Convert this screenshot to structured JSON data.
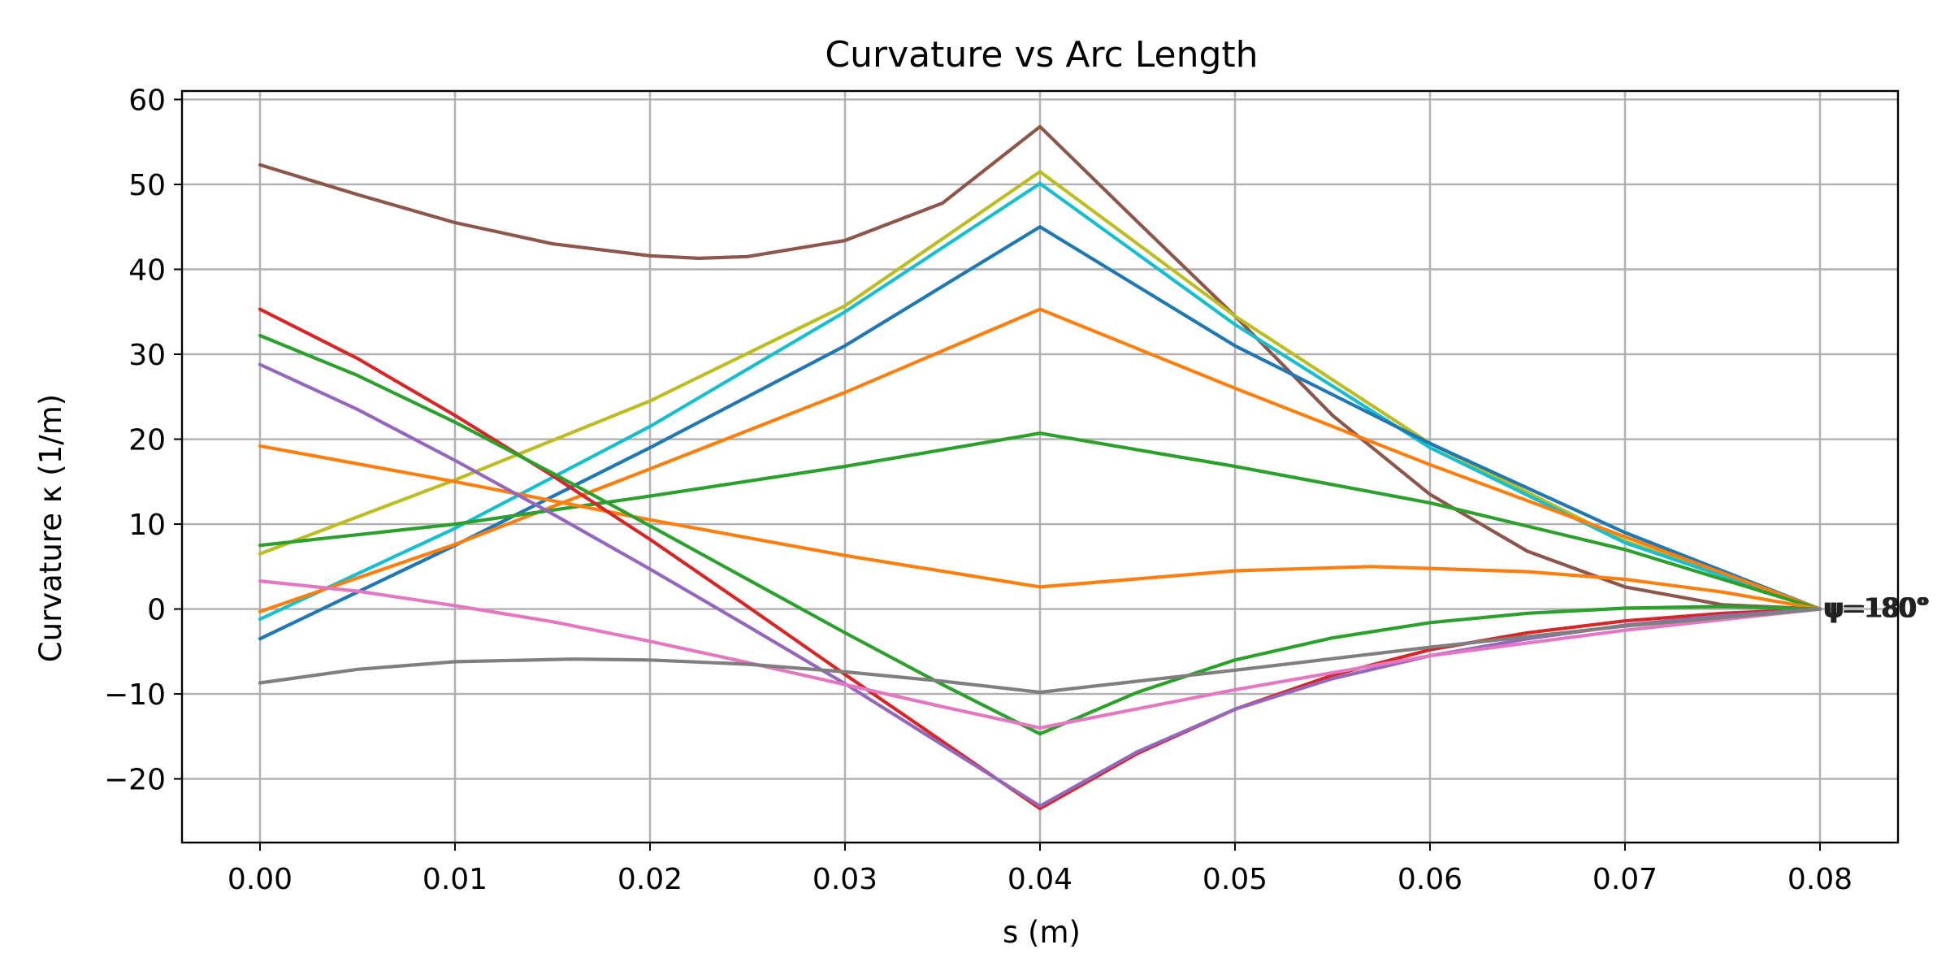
{
  "chart_data": {
    "type": "line",
    "title": "Curvature vs Arc Length",
    "xlabel": "s (m)",
    "ylabel": "Curvature κ (1/m)",
    "xlim": [
      -0.004,
      0.084
    ],
    "ylim": [
      -27.5,
      61
    ],
    "xticks": [
      0.0,
      0.01,
      0.02,
      0.03,
      0.04,
      0.05,
      0.06,
      0.07,
      0.08
    ],
    "xtick_labels": [
      "0.00",
      "0.01",
      "0.02",
      "0.03",
      "0.04",
      "0.05",
      "0.06",
      "0.07",
      "0.08"
    ],
    "yticks": [
      -20,
      -10,
      0,
      10,
      20,
      30,
      40,
      50,
      60
    ],
    "ytick_labels": [
      "−20",
      "−10",
      "0",
      "10",
      "20",
      "30",
      "40",
      "50",
      "60"
    ],
    "grid": true,
    "end_annotation": "ψ=180°",
    "series": [
      {
        "color": "#8c564b",
        "x": [
          0,
          0.005,
          0.01,
          0.015,
          0.02,
          0.0225,
          0.025,
          0.03,
          0.035,
          0.04,
          0.045,
          0.05,
          0.055,
          0.06,
          0.065,
          0.07,
          0.075,
          0.08
        ],
        "y": [
          52.3,
          48.8,
          45.5,
          43.0,
          41.6,
          41.3,
          41.5,
          43.4,
          47.8,
          56.8,
          45.6,
          34.5,
          22.8,
          13.5,
          6.8,
          2.6,
          0.5,
          0
        ]
      },
      {
        "color": "#bcbd22",
        "x": [
          0,
          0.01,
          0.02,
          0.03,
          0.04,
          0.05,
          0.06,
          0.07,
          0.08
        ],
        "y": [
          6.5,
          15.2,
          24.5,
          35.7,
          51.5,
          34.5,
          19.5,
          8.0,
          0
        ]
      },
      {
        "color": "#17becf",
        "x": [
          0,
          0.01,
          0.02,
          0.03,
          0.04,
          0.05,
          0.06,
          0.07,
          0.08
        ],
        "y": [
          -1.2,
          9.5,
          21.5,
          35.0,
          50.1,
          33.5,
          19.0,
          7.8,
          0
        ]
      },
      {
        "color": "#1f77b4",
        "x": [
          0,
          0.01,
          0.02,
          0.03,
          0.04,
          0.05,
          0.06,
          0.07,
          0.08
        ],
        "y": [
          -3.5,
          7.5,
          19.0,
          31.0,
          45.0,
          31.0,
          19.5,
          9.0,
          0
        ]
      },
      {
        "color": "#ff7f0e",
        "x": [
          0,
          0.01,
          0.02,
          0.03,
          0.04,
          0.05,
          0.06,
          0.07,
          0.08
        ],
        "y": [
          -0.3,
          7.6,
          16.5,
          25.5,
          35.3,
          26.0,
          17.0,
          8.5,
          0
        ]
      },
      {
        "color": "#2ca02c",
        "x": [
          0,
          0.01,
          0.02,
          0.03,
          0.04,
          0.05,
          0.06,
          0.07,
          0.08
        ],
        "y": [
          7.5,
          10.0,
          13.3,
          16.8,
          20.7,
          16.8,
          12.5,
          7.0,
          0
        ]
      },
      {
        "color": "#ff7f0e",
        "x": [
          0,
          0.01,
          0.02,
          0.03,
          0.04,
          0.05,
          0.057,
          0.065,
          0.07,
          0.075,
          0.08
        ],
        "y": [
          19.2,
          15.0,
          10.5,
          6.3,
          2.6,
          4.5,
          5.0,
          4.4,
          3.5,
          2.0,
          0
        ]
      },
      {
        "color": "#d62728",
        "x": [
          0,
          0.005,
          0.01,
          0.015,
          0.02,
          0.025,
          0.03,
          0.035,
          0.04,
          0.045,
          0.05,
          0.055,
          0.06,
          0.065,
          0.07,
          0.075,
          0.08
        ],
        "y": [
          35.3,
          29.5,
          22.8,
          15.7,
          8.2,
          0.3,
          -7.7,
          -15.6,
          -23.5,
          -17.0,
          -11.8,
          -7.8,
          -4.8,
          -2.8,
          -1.4,
          -0.5,
          0
        ]
      },
      {
        "color": "#2ca02c",
        "x": [
          0,
          0.005,
          0.01,
          0.015,
          0.02,
          0.025,
          0.03,
          0.035,
          0.04,
          0.045,
          0.05,
          0.055,
          0.06,
          0.065,
          0.07,
          0.075,
          0.08
        ],
        "y": [
          32.2,
          27.5,
          22.0,
          16.0,
          9.8,
          3.5,
          -2.8,
          -8.9,
          -14.7,
          -9.8,
          -6.0,
          -3.4,
          -1.6,
          -0.5,
          0.1,
          0.3,
          0
        ]
      },
      {
        "color": "#9467bd",
        "x": [
          0,
          0.005,
          0.01,
          0.015,
          0.02,
          0.025,
          0.03,
          0.035,
          0.04,
          0.045,
          0.05,
          0.055,
          0.06,
          0.065,
          0.07,
          0.075,
          0.08
        ],
        "y": [
          28.8,
          23.5,
          17.5,
          11.2,
          4.7,
          -2.0,
          -8.8,
          -16.0,
          -23.2,
          -16.8,
          -11.8,
          -8.2,
          -5.5,
          -3.5,
          -1.9,
          -0.8,
          0
        ]
      },
      {
        "color": "#e377c2",
        "x": [
          0,
          0.005,
          0.01,
          0.015,
          0.02,
          0.025,
          0.03,
          0.035,
          0.04,
          0.05,
          0.06,
          0.07,
          0.08
        ],
        "y": [
          3.3,
          2.1,
          0.4,
          -1.5,
          -3.8,
          -6.3,
          -8.9,
          -11.5,
          -14.0,
          -9.5,
          -5.5,
          -2.5,
          0
        ]
      },
      {
        "color": "#7f7f7f",
        "x": [
          0,
          0.005,
          0.01,
          0.016,
          0.02,
          0.025,
          0.03,
          0.035,
          0.04,
          0.05,
          0.06,
          0.07,
          0.08
        ],
        "y": [
          -8.7,
          -7.1,
          -6.2,
          -5.9,
          -6.0,
          -6.5,
          -7.4,
          -8.5,
          -9.8,
          -7.2,
          -4.5,
          -2.0,
          0
        ]
      }
    ]
  }
}
